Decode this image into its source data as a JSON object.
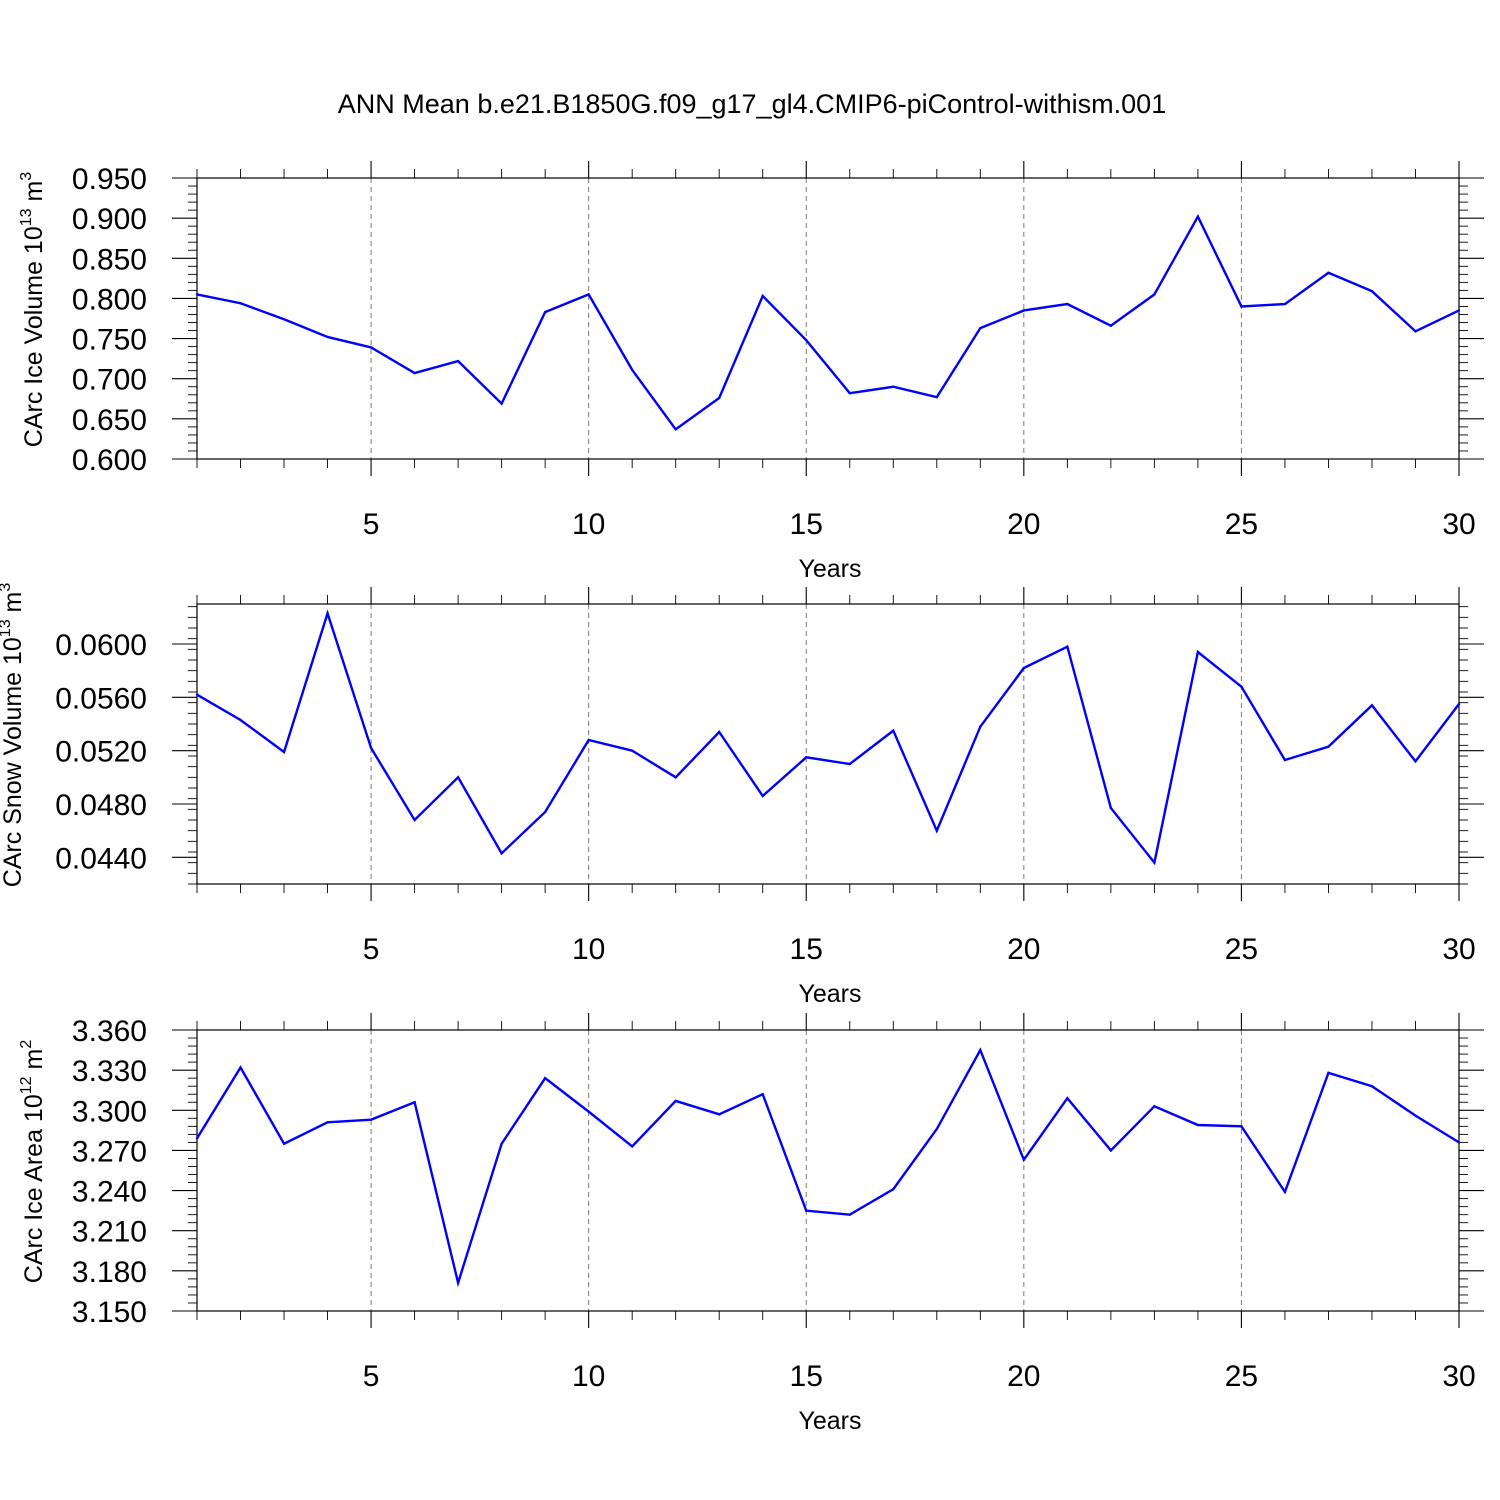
{
  "title": "ANN Mean b.e21.B1850G.f09_g17_gl4.CMIP6-piControl-withism.001",
  "colors": {
    "line": "#0000ff",
    "axis": "#000000",
    "grid": "#7a7a7a"
  },
  "chart_data": [
    {
      "type": "line",
      "xlabel": "Years",
      "ylabel": "CArc Ice Volume",
      "ylabel_unit_base": "10",
      "ylabel_unit_exp": "13",
      "ylabel_unit_suffix": "m",
      "ylabel_unit_suffix_exp": "3",
      "xlim": [
        1,
        30
      ],
      "ylim": [
        0.6,
        0.95
      ],
      "xticks": [
        5,
        10,
        15,
        20,
        25,
        30
      ],
      "xtick_labels": [
        "5",
        "10",
        "15",
        "20",
        "25",
        "30"
      ],
      "yticks": [
        0.6,
        0.65,
        0.7,
        0.75,
        0.8,
        0.85,
        0.9,
        0.95
      ],
      "ytick_labels": [
        "0.600",
        "0.650",
        "0.700",
        "0.750",
        "0.800",
        "0.850",
        "0.900",
        "0.950"
      ],
      "grid": "vertical dashed at major x ticks",
      "x": [
        1,
        2,
        3,
        4,
        5,
        6,
        7,
        8,
        9,
        10,
        11,
        12,
        13,
        14,
        15,
        16,
        17,
        18,
        19,
        20,
        21,
        22,
        23,
        24,
        25,
        26,
        27,
        28,
        29,
        30
      ],
      "y": [
        0.805,
        0.794,
        0.774,
        0.752,
        0.739,
        0.707,
        0.722,
        0.669,
        0.783,
        0.805,
        0.711,
        0.637,
        0.676,
        0.803,
        0.748,
        0.682,
        0.69,
        0.677,
        0.763,
        0.785,
        0.793,
        0.766,
        0.805,
        0.902,
        0.79,
        0.793,
        0.832,
        0.809,
        0.759,
        0.785
      ]
    },
    {
      "type": "line",
      "xlabel": "Years",
      "ylabel": "CArc Snow Volume",
      "ylabel_unit_base": "10",
      "ylabel_unit_exp": "13",
      "ylabel_unit_suffix": "m",
      "ylabel_unit_suffix_exp": "3",
      "xlim": [
        1,
        30
      ],
      "ylim": [
        0.042,
        0.063
      ],
      "xticks": [
        5,
        10,
        15,
        20,
        25,
        30
      ],
      "xtick_labels": [
        "5",
        "10",
        "15",
        "20",
        "25",
        "30"
      ],
      "yticks": [
        0.044,
        0.048,
        0.052,
        0.056,
        0.06
      ],
      "ytick_labels": [
        "0.0440",
        "0.0480",
        "0.0520",
        "0.0560",
        "0.0600"
      ],
      "grid": "vertical dashed at major x ticks",
      "x": [
        1,
        2,
        3,
        4,
        5,
        6,
        7,
        8,
        9,
        10,
        11,
        12,
        13,
        14,
        15,
        16,
        17,
        18,
        19,
        20,
        21,
        22,
        23,
        24,
        25,
        26,
        27,
        28,
        29,
        30
      ],
      "y": [
        0.0562,
        0.0543,
        0.0519,
        0.0623,
        0.0522,
        0.0468,
        0.05,
        0.0443,
        0.0474,
        0.0528,
        0.052,
        0.05,
        0.0534,
        0.0486,
        0.0515,
        0.051,
        0.0535,
        0.046,
        0.0538,
        0.0582,
        0.0598,
        0.0477,
        0.0436,
        0.0594,
        0.0568,
        0.0513,
        0.0523,
        0.0554,
        0.0512,
        0.0555
      ]
    },
    {
      "type": "line",
      "xlabel": "Years",
      "ylabel": "CArc Ice Area",
      "ylabel_unit_base": "10",
      "ylabel_unit_exp": "12",
      "ylabel_unit_suffix": "m",
      "ylabel_unit_suffix_exp": "2",
      "xlim": [
        1,
        30
      ],
      "ylim": [
        3.15,
        3.36
      ],
      "xticks": [
        5,
        10,
        15,
        20,
        25,
        30
      ],
      "xtick_labels": [
        "5",
        "10",
        "15",
        "20",
        "25",
        "30"
      ],
      "yticks": [
        3.15,
        3.18,
        3.21,
        3.24,
        3.27,
        3.3,
        3.33,
        3.36
      ],
      "ytick_labels": [
        "3.150",
        "3.180",
        "3.210",
        "3.240",
        "3.270",
        "3.300",
        "3.330",
        "3.360"
      ],
      "grid": "vertical dashed at major x ticks",
      "x": [
        1,
        2,
        3,
        4,
        5,
        6,
        7,
        8,
        9,
        10,
        11,
        12,
        13,
        14,
        15,
        16,
        17,
        18,
        19,
        20,
        21,
        22,
        23,
        24,
        25,
        26,
        27,
        28,
        29,
        30
      ],
      "y": [
        3.279,
        3.332,
        3.275,
        3.291,
        3.293,
        3.306,
        3.171,
        3.275,
        3.324,
        3.299,
        3.273,
        3.307,
        3.297,
        3.312,
        3.225,
        3.222,
        3.241,
        3.286,
        3.345,
        3.263,
        3.309,
        3.27,
        3.303,
        3.289,
        3.288,
        3.239,
        3.328,
        3.318,
        3.296,
        3.276
      ]
    }
  ]
}
